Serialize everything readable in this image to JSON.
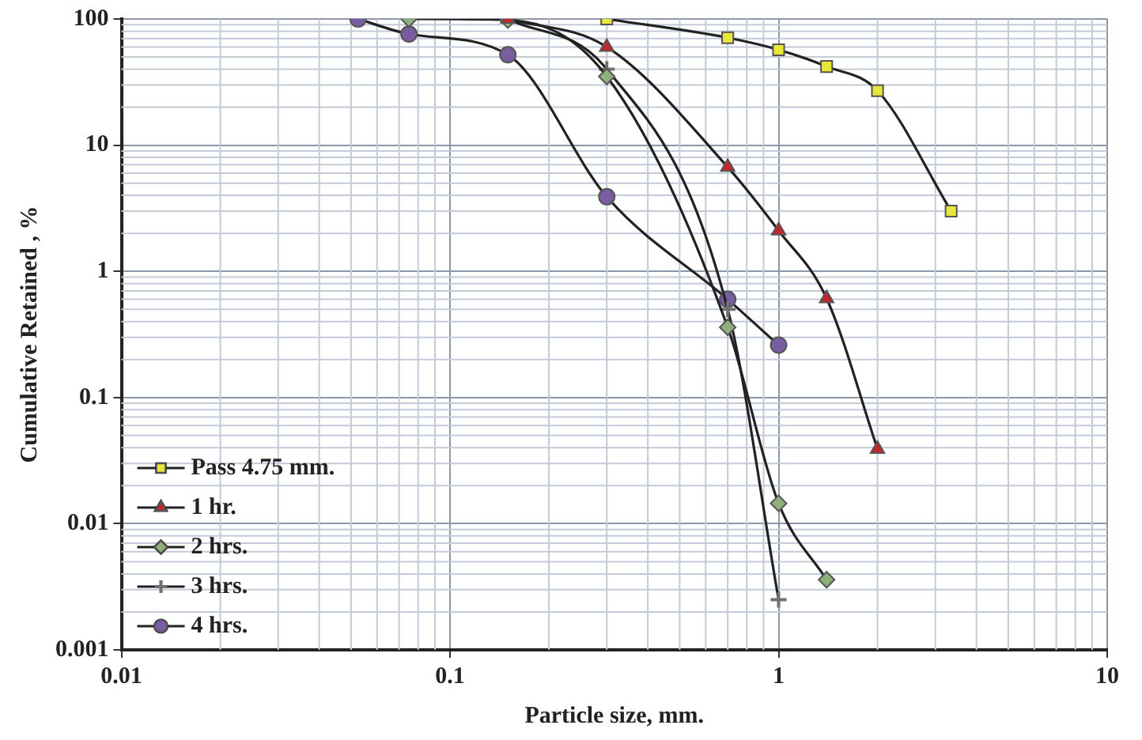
{
  "chart_data": {
    "type": "line",
    "xlabel": "Particle size, mm.",
    "ylabel": "Cumulative Retained , %",
    "log": "xy",
    "xlim": [
      0.01,
      10
    ],
    "xticks": [
      0.01,
      0.1,
      1,
      10
    ],
    "ylim": [
      0.001,
      100
    ],
    "yticks": [
      0.001,
      0.01,
      0.1,
      1,
      10,
      100
    ],
    "grid": true,
    "legend": "bottom left",
    "line_style": "solid",
    "series": [
      {
        "name": "Pass 4.75 mm.",
        "color": "#e8e83a",
        "marker": "square",
        "x": [
          0.3,
          0.7,
          1,
          1.4,
          2,
          3.35
        ],
        "values": [
          100,
          71,
          57,
          42,
          27,
          3
        ]
      },
      {
        "name": "1 hr.",
        "color": "#c0282e",
        "marker": "triangle",
        "x": [
          0.15,
          0.3,
          0.7,
          1,
          1.4,
          2
        ],
        "values": [
          100,
          60,
          6.7,
          2.1,
          0.61,
          0.039
        ]
      },
      {
        "name": "2 hrs.",
        "color": "#8fb07a",
        "marker": "diamond",
        "x": [
          0.075,
          0.15,
          0.3,
          0.7,
          1,
          1.4
        ],
        "values": [
          100,
          98,
          35,
          0.36,
          0.0145,
          0.0036
        ]
      },
      {
        "name": "3 hrs.",
        "color": "#707070",
        "marker": "cross",
        "x": [
          0.15,
          0.3,
          0.7,
          1
        ],
        "values": [
          100,
          40,
          0.5,
          0.0025
        ]
      },
      {
        "name": "4 hrs.",
        "color": "#7a5ca0",
        "marker": "circle",
        "x": [
          0.0525,
          0.075,
          0.15,
          0.3,
          0.7,
          1
        ],
        "values": [
          100,
          76,
          52,
          3.9,
          0.6,
          0.26
        ]
      }
    ]
  }
}
